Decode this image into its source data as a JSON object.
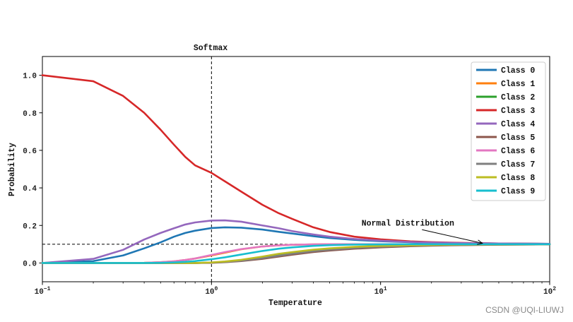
{
  "chart_data": {
    "type": "line",
    "title": "Softmax",
    "xlabel": "Temperature",
    "ylabel": "Probability",
    "xscale": "log",
    "xlim": [
      0.1,
      100
    ],
    "ylim": [
      -0.1,
      1.1
    ],
    "x_ticks": [
      {
        "value": 0.1,
        "base": "10",
        "exp": "−1"
      },
      {
        "value": 1,
        "base": "10",
        "exp": "0"
      },
      {
        "value": 10,
        "base": "10",
        "exp": "1"
      },
      {
        "value": 100,
        "base": "10",
        "exp": "2"
      }
    ],
    "y_ticks": [
      {
        "value": 0.0,
        "label": "0.0"
      },
      {
        "value": 0.2,
        "label": "0.2"
      },
      {
        "value": 0.4,
        "label": "0.4"
      },
      {
        "value": 0.6,
        "label": "0.6"
      },
      {
        "value": 0.8,
        "label": "0.8"
      },
      {
        "value": 1.0,
        "label": "1.0"
      }
    ],
    "reference_lines": {
      "vertical_x": 1,
      "horizontal_y": 0.1
    },
    "annotation": {
      "text": "Normal Distribution",
      "text_at": [
        14.5,
        0.2
      ],
      "arrow_to": [
        40,
        0.105
      ]
    },
    "legend_position": "top-right",
    "x": [
      0.1,
      0.2,
      0.3,
      0.4,
      0.5,
      0.6,
      0.7,
      0.8,
      1.0,
      1.2,
      1.5,
      2,
      2.5,
      3,
      4,
      5,
      7,
      10,
      15,
      20,
      30,
      50,
      100
    ],
    "series": [
      {
        "name": "Class 0",
        "color": "#1f77b4",
        "values": [
          0.0,
          0.01,
          0.04,
          0.078,
          0.11,
          0.14,
          0.16,
          0.172,
          0.186,
          0.19,
          0.188,
          0.178,
          0.166,
          0.157,
          0.143,
          0.133,
          0.123,
          0.116,
          0.111,
          0.108,
          0.106,
          0.104,
          0.102
        ]
      },
      {
        "name": "Class 1",
        "color": "#ff7f0e",
        "values": [
          0.0,
          0.0,
          0.0,
          0.001,
          0.004,
          0.009,
          0.016,
          0.024,
          0.04,
          0.055,
          0.073,
          0.088,
          0.094,
          0.097,
          0.099,
          0.1,
          0.1,
          0.1,
          0.1,
          0.1,
          0.1,
          0.1,
          0.1
        ]
      },
      {
        "name": "Class 2",
        "color": "#2ca02c",
        "values": [
          0.0,
          0.0,
          0.0,
          0.0,
          0.0,
          0.0,
          0.0,
          0.0,
          0.002,
          0.006,
          0.014,
          0.03,
          0.044,
          0.055,
          0.068,
          0.076,
          0.084,
          0.089,
          0.093,
          0.095,
          0.097,
          0.098,
          0.099
        ]
      },
      {
        "name": "Class 3",
        "color": "#d62728",
        "values": [
          1.0,
          0.968,
          0.89,
          0.8,
          0.71,
          0.63,
          0.565,
          0.52,
          0.48,
          0.435,
          0.38,
          0.31,
          0.265,
          0.235,
          0.19,
          0.165,
          0.14,
          0.126,
          0.115,
          0.111,
          0.107,
          0.104,
          0.102
        ]
      },
      {
        "name": "Class 4",
        "color": "#9467bd",
        "values": [
          0.0,
          0.022,
          0.07,
          0.125,
          0.16,
          0.185,
          0.205,
          0.216,
          0.226,
          0.227,
          0.22,
          0.2,
          0.185,
          0.17,
          0.152,
          0.14,
          0.128,
          0.119,
          0.112,
          0.109,
          0.106,
          0.104,
          0.102
        ]
      },
      {
        "name": "Class 5",
        "color": "#8c564b",
        "values": [
          0.0,
          0.0,
          0.0,
          0.0,
          0.0,
          0.0,
          0.0,
          0.0,
          0.001,
          0.004,
          0.01,
          0.022,
          0.034,
          0.044,
          0.058,
          0.066,
          0.076,
          0.083,
          0.089,
          0.092,
          0.095,
          0.097,
          0.099
        ]
      },
      {
        "name": "Class 6",
        "color": "#e377c2",
        "values": [
          0.0,
          0.0,
          0.0,
          0.001,
          0.004,
          0.009,
          0.016,
          0.024,
          0.043,
          0.058,
          0.074,
          0.088,
          0.094,
          0.097,
          0.099,
          0.1,
          0.1,
          0.1,
          0.1,
          0.1,
          0.1,
          0.1,
          0.1
        ]
      },
      {
        "name": "Class 7",
        "color": "#7f7f7f",
        "values": [
          0.0,
          0.0,
          0.0,
          0.0,
          0.0,
          0.0,
          0.0,
          0.0,
          0.002,
          0.005,
          0.012,
          0.026,
          0.039,
          0.049,
          0.063,
          0.071,
          0.08,
          0.087,
          0.092,
          0.094,
          0.096,
          0.098,
          0.099
        ]
      },
      {
        "name": "Class 8",
        "color": "#bcbd22",
        "values": [
          0.0,
          0.0,
          0.0,
          0.0,
          0.0,
          0.0,
          0.0,
          0.0,
          0.003,
          0.008,
          0.017,
          0.034,
          0.049,
          0.058,
          0.071,
          0.078,
          0.086,
          0.091,
          0.094,
          0.096,
          0.098,
          0.099,
          0.1
        ]
      },
      {
        "name": "Class 9",
        "color": "#17becf",
        "values": [
          0.0,
          0.0,
          0.0,
          0.0,
          0.001,
          0.003,
          0.006,
          0.01,
          0.02,
          0.03,
          0.045,
          0.064,
          0.076,
          0.083,
          0.091,
          0.095,
          0.098,
          0.099,
          0.1,
          0.1,
          0.1,
          0.1,
          0.1
        ]
      }
    ]
  },
  "watermark": "CSDN @UQI-LIUWJ"
}
